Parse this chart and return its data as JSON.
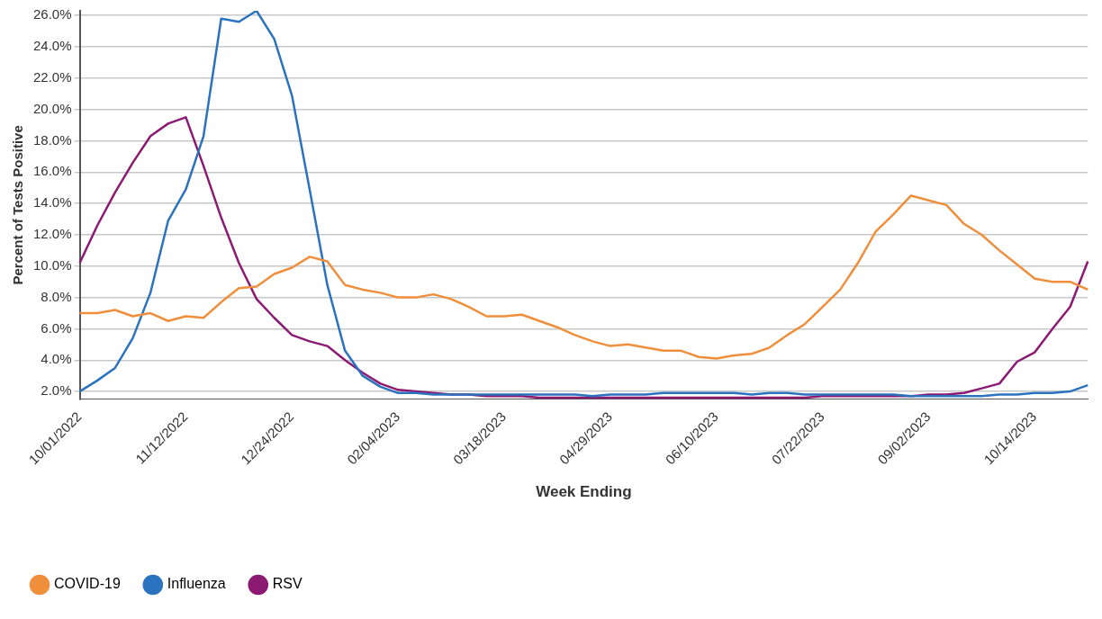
{
  "chart_data": {
    "type": "line",
    "xlabel": "Week Ending",
    "ylabel": "Percent of Tests Positive",
    "categories": [
      "10/01/2022",
      null,
      null,
      null,
      null,
      null,
      "11/12/2022",
      null,
      null,
      null,
      null,
      null,
      "12/24/2022",
      null,
      null,
      null,
      null,
      null,
      "02/04/2023",
      null,
      null,
      null,
      null,
      null,
      "03/18/2023",
      null,
      null,
      null,
      null,
      null,
      "04/29/2023",
      null,
      null,
      null,
      null,
      null,
      "06/10/2023",
      null,
      null,
      null,
      null,
      null,
      "07/22/2023",
      null,
      null,
      null,
      null,
      null,
      "09/02/2023",
      null,
      null,
      null,
      null,
      null,
      "10/14/2023",
      null,
      null,
      null
    ],
    "series": [
      {
        "name": "COVID-19",
        "color": "#ef8e3b",
        "values": [
          7.0,
          7.0,
          7.2,
          6.8,
          7.0,
          6.5,
          6.8,
          6.7,
          7.7,
          8.6,
          8.7,
          9.5,
          9.9,
          10.6,
          10.3,
          8.8,
          8.5,
          8.3,
          8.0,
          8.0,
          8.2,
          7.9,
          7.4,
          6.8,
          6.8,
          6.9,
          6.5,
          6.1,
          5.6,
          5.2,
          4.9,
          5.0,
          4.8,
          4.6,
          4.6,
          4.2,
          4.1,
          4.3,
          4.4,
          4.8,
          5.6,
          6.3,
          7.4,
          8.5,
          10.2,
          12.2,
          13.3,
          14.5,
          14.2,
          13.9,
          12.7,
          12.0,
          11.0,
          10.1,
          9.2,
          9.0,
          9.0,
          8.5
        ]
      },
      {
        "name": "Influenza",
        "color": "#2b72bf",
        "values": [
          2.0,
          2.7,
          3.5,
          5.4,
          8.3,
          12.9,
          14.9,
          18.3,
          25.8,
          25.6,
          26.3,
          24.5,
          20.9,
          14.9,
          8.8,
          4.6,
          3.0,
          2.3,
          1.9,
          1.9,
          1.8,
          1.8,
          1.8,
          1.8,
          1.8,
          1.8,
          1.8,
          1.8,
          1.8,
          1.7,
          1.8,
          1.8,
          1.8,
          1.9,
          1.9,
          1.9,
          1.9,
          1.9,
          1.8,
          1.9,
          1.9,
          1.8,
          1.8,
          1.8,
          1.8,
          1.8,
          1.8,
          1.7,
          1.7,
          1.7,
          1.7,
          1.7,
          1.8,
          1.8,
          1.9,
          1.9,
          2.0,
          2.4
        ]
      },
      {
        "name": "RSV",
        "color": "#8c1a73",
        "values": [
          10.2,
          12.6,
          14.7,
          16.6,
          18.3,
          19.1,
          19.5,
          16.4,
          13.1,
          10.2,
          7.9,
          6.7,
          5.6,
          5.2,
          4.9,
          4.0,
          3.2,
          2.5,
          2.1,
          2.0,
          1.9,
          1.8,
          1.8,
          1.7,
          1.7,
          1.7,
          1.6,
          1.6,
          1.6,
          1.6,
          1.6,
          1.6,
          1.6,
          1.6,
          1.6,
          1.6,
          1.6,
          1.6,
          1.6,
          1.6,
          1.6,
          1.6,
          1.7,
          1.7,
          1.7,
          1.7,
          1.7,
          1.7,
          1.8,
          1.8,
          1.9,
          2.2,
          2.5,
          3.9,
          4.5,
          6.0,
          7.4,
          10.3
        ]
      }
    ],
    "ylim": [
      1.5,
      26.3
    ],
    "yticks": [
      {
        "value": 2,
        "label": "2.0%"
      },
      {
        "value": 4,
        "label": "4.0%"
      },
      {
        "value": 6,
        "label": "6.0%"
      },
      {
        "value": 8,
        "label": "8.0%"
      },
      {
        "value": 10,
        "label": "10.0%"
      },
      {
        "value": 12,
        "label": "12.0%"
      },
      {
        "value": 14,
        "label": "14.0%"
      },
      {
        "value": 16,
        "label": "16.0%"
      },
      {
        "value": 18,
        "label": "18.0%"
      },
      {
        "value": 20,
        "label": "20.0%"
      },
      {
        "value": 22,
        "label": "22.0%"
      },
      {
        "value": 24,
        "label": "24.0%"
      },
      {
        "value": 26,
        "label": "26.0%"
      }
    ],
    "grid": "y",
    "legend": "bottom left",
    "marker": "none",
    "line_style": "solid"
  }
}
